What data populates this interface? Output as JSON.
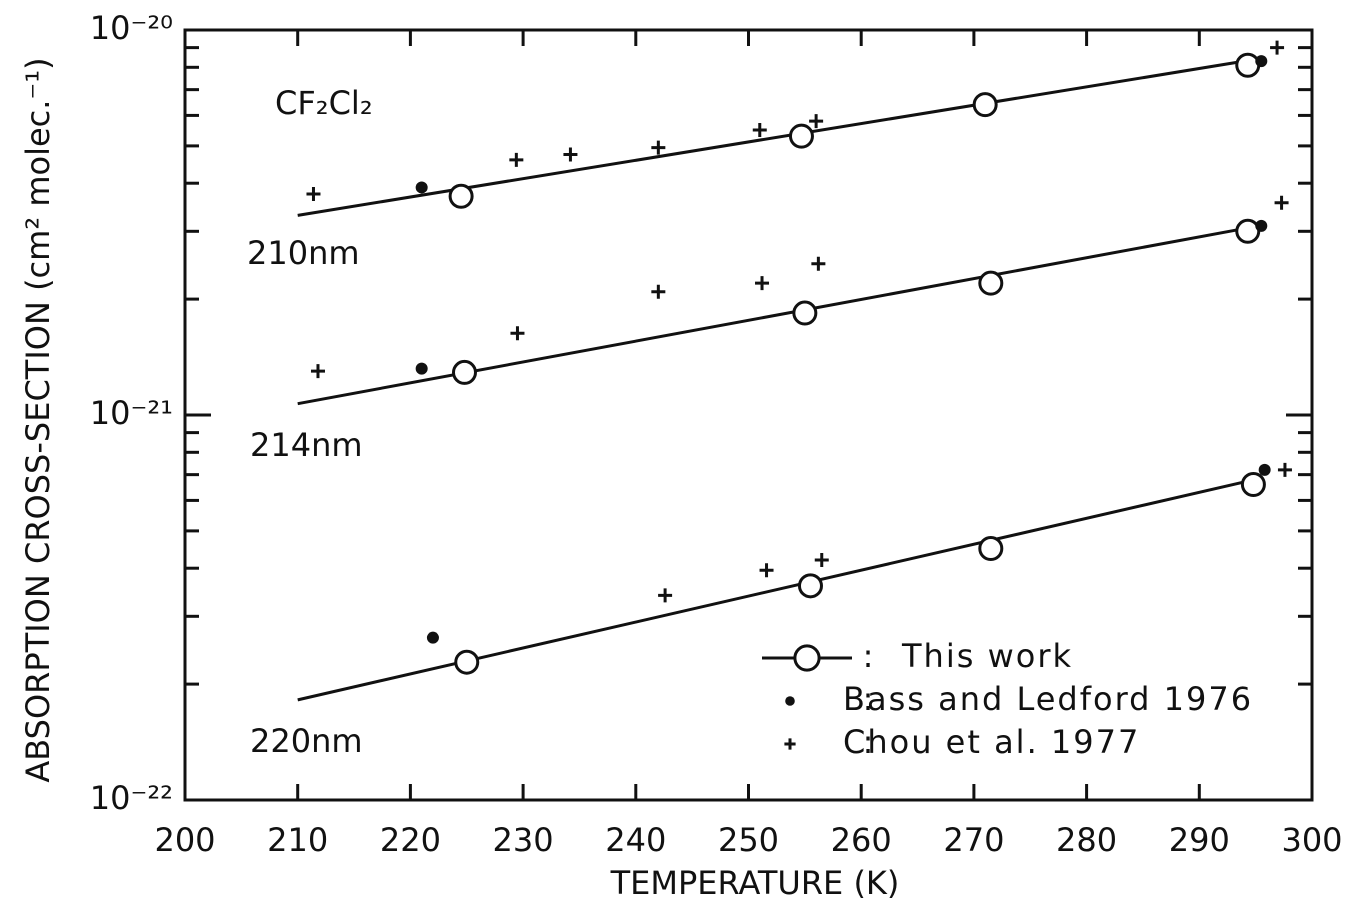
{
  "chart_data": {
    "type": "scatter",
    "log_y": true,
    "legend": "lower right",
    "xlabel": "TEMPERATURE (K)",
    "ylabel": "ABSORPTION CROSS-SECTION (cm² molec.⁻¹)",
    "annotations": [
      "CF₂Cl₂",
      "210nm",
      "214nm",
      "220nm"
    ],
    "xlim": [
      200,
      300
    ],
    "xticks": [
      200,
      210,
      220,
      230,
      240,
      250,
      260,
      270,
      280,
      290,
      300
    ],
    "ylim": [
      1e-22,
      1e-20
    ],
    "yticks": [
      {
        "value": 1e-22,
        "label": "10⁻²²"
      },
      {
        "value": 1e-21,
        "label": "10⁻²¹"
      },
      {
        "value": 1e-20,
        "label": "10⁻²⁰"
      }
    ],
    "yminor": [
      2e-22,
      3e-22,
      4e-22,
      5e-22,
      6e-22,
      7e-22,
      8e-22,
      9e-22,
      2e-21,
      3e-21,
      4e-21,
      5e-21,
      6e-21,
      7e-21,
      8e-21,
      9e-21
    ],
    "series": [
      {
        "name": "This work",
        "marker": "circle",
        "color": "#111111",
        "x": [
          224.5,
          254.7,
          271,
          294.3,
          224.8,
          255,
          271.5,
          294.3,
          225,
          255.5,
          271.5,
          294.8
        ],
        "values": [
          3.7e-21,
          5.3e-21,
          6.4e-21,
          8.1e-21,
          1.29e-21,
          1.84e-21,
          2.2e-21,
          3e-21,
          2.28e-22,
          3.6e-22,
          4.5e-22,
          6.6e-22
        ]
      },
      {
        "name": "Bass and Ledford 1976",
        "marker": "star",
        "color": "#111111",
        "x": [
          221,
          295.5,
          221,
          295.5,
          222,
          295.8
        ],
        "values": [
          3.9e-21,
          8.3e-21,
          1.32e-21,
          3.1e-21,
          2.64e-22,
          7.2e-22
        ]
      },
      {
        "name": "Chou et al. 1977",
        "marker": "plus",
        "color": "#111111",
        "x": [
          211.4,
          229.4,
          234.2,
          242,
          251,
          256,
          296.9,
          211.8,
          229.5,
          242,
          251.2,
          256.2,
          297.3,
          242.6,
          251.6,
          256.5,
          297.6
        ],
        "values": [
          3.75e-21,
          4.6e-21,
          4.75e-21,
          4.95e-21,
          5.5e-21,
          5.8e-21,
          9e-21,
          1.3e-21,
          1.63e-21,
          2.09e-21,
          2.2e-21,
          2.47e-21,
          3.56e-21,
          3.4e-22,
          3.95e-22,
          4.2e-22,
          7.2e-22
        ]
      }
    ],
    "fit_lines": [
      {
        "x": [
          210,
          294
        ],
        "values": [
          3.3e-21,
          8.3e-21
        ]
      },
      {
        "x": [
          210,
          294
        ],
        "values": [
          1.07e-21,
          3.05e-21
        ]
      },
      {
        "x": [
          210,
          294
        ],
        "values": [
          1.82e-22,
          6.7e-22
        ]
      }
    ]
  }
}
